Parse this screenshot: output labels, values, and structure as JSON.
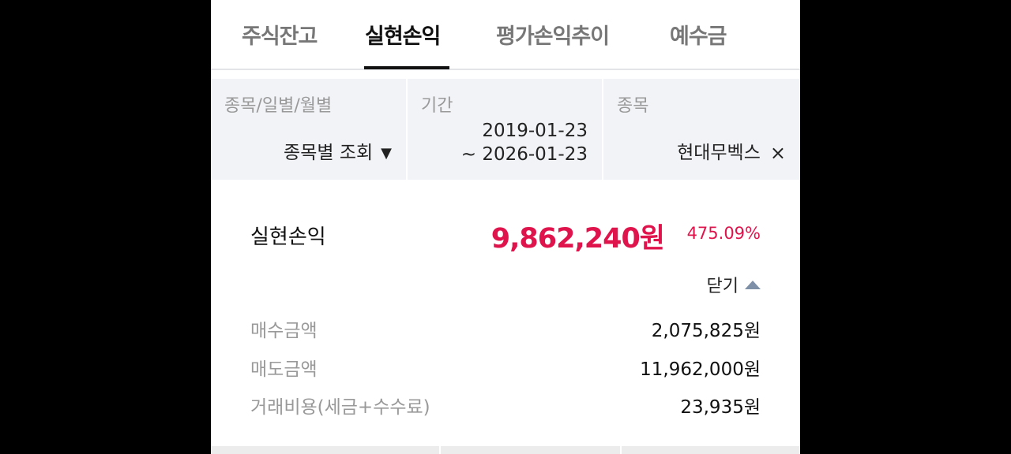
{
  "tabs": [
    {
      "label": "주식잔고"
    },
    {
      "label": "실현손익"
    },
    {
      "label": "평가손익추이"
    },
    {
      "label": "예수금"
    }
  ],
  "active_tab": "실현손익",
  "filters": {
    "type": {
      "label": "종목/일별/월별",
      "value": "종목별 조회"
    },
    "period": {
      "label": "기간",
      "start": "2019-01-23",
      "end": "~ 2026-01-23"
    },
    "stock": {
      "label": "종목",
      "value": "현대무벡스",
      "clear": "×"
    }
  },
  "summary": {
    "label": "실현손익",
    "amount": "9,862,240원",
    "rate": "475.09%",
    "toggle": "닫기"
  },
  "details": [
    {
      "label": "매수금액",
      "value": "2,075,825원"
    },
    {
      "label": "매도금액",
      "value": "11,962,000원"
    },
    {
      "label": "거래비용(세금+수수료)",
      "value": "23,935원"
    }
  ],
  "colors": {
    "profit": "#e0144c",
    "filter_bg": "#f2f3f7"
  }
}
